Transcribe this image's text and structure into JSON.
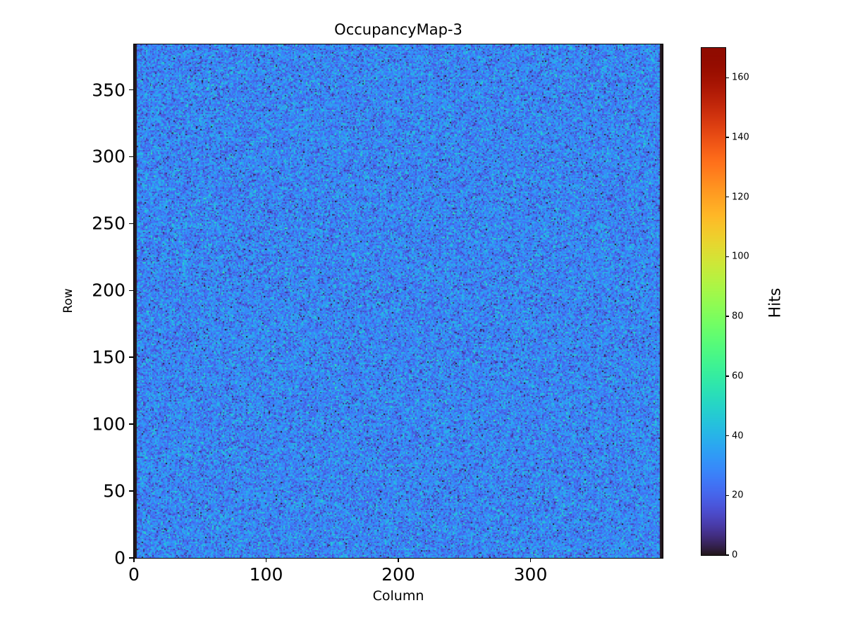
{
  "chart_data": {
    "type": "heatmap",
    "title": "OccupancyMap-3",
    "xlabel": "Column",
    "ylabel": "Row",
    "x_range": [
      0,
      400
    ],
    "y_range": [
      0,
      384
    ],
    "x_ticks": [
      0,
      100,
      200,
      300
    ],
    "y_ticks": [
      0,
      50,
      100,
      150,
      200,
      250,
      300,
      350
    ],
    "grid": false,
    "colormap": "turbo",
    "colorbar": {
      "label": "Hits",
      "vmin": 0,
      "vmax": 170,
      "ticks": [
        0,
        20,
        40,
        60,
        80,
        100,
        120,
        140,
        160
      ]
    },
    "data_summary": {
      "distribution": "uniform random hit-count noise across all pixels",
      "mean_hits": 28,
      "std_hits": 9,
      "edge_zero_columns": 2
    }
  }
}
